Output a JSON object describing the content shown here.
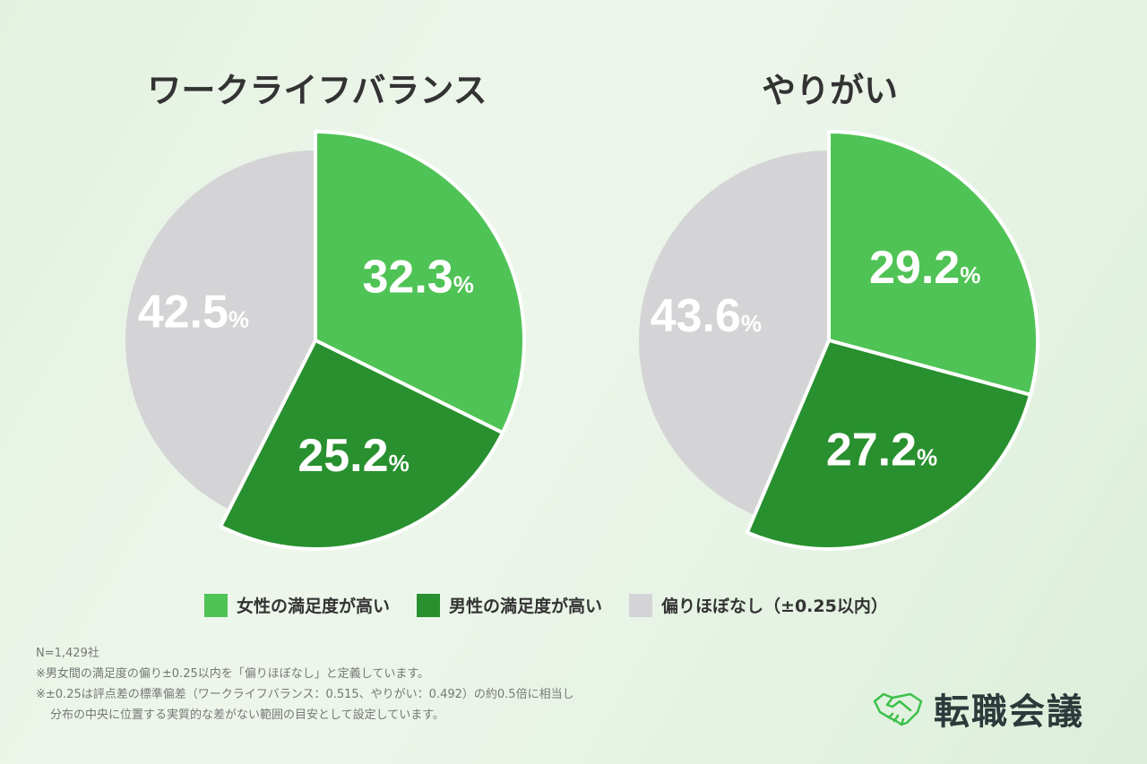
{
  "colors": {
    "women": "#4fc355",
    "men": "#28902e",
    "none": "#d4d4d6"
  },
  "chart_data": [
    {
      "type": "pie",
      "title": "ワークライフバランス",
      "categories": [
        "女性の満足度が高い",
        "男性の満足度が高い",
        "偏りほぼなし（±0.25以内）"
      ],
      "values": [
        32.3,
        25.2,
        42.5
      ],
      "labels": [
        "32.3",
        "25.2",
        "42.5"
      ]
    },
    {
      "type": "pie",
      "title": "やりがい",
      "categories": [
        "女性の満足度が高い",
        "男性の満足度が高い",
        "偏りほぼなし（±0.25以内）"
      ],
      "values": [
        29.2,
        27.2,
        43.6
      ],
      "labels": [
        "29.2",
        "27.2",
        "43.6"
      ]
    }
  ],
  "unit": "%",
  "legend": [
    "女性の満足度が高い",
    "男性の満足度が高い",
    "偏りほぼなし（±0.25以内）"
  ],
  "notes": [
    "N=1,429社",
    "※男女間の満足度の偏り±0.25以内を「偏りほぼなし」と定義しています。",
    "※±0.25は評点差の標準偏差（ワークライフバランス：0.515、やりがい：0.492）の約0.5倍に相当し",
    "分布の中央に位置する実質的な差がない範囲の目安として設定しています。"
  ],
  "logo": {
    "text": "転職会議",
    "icon": "handshake-icon"
  }
}
